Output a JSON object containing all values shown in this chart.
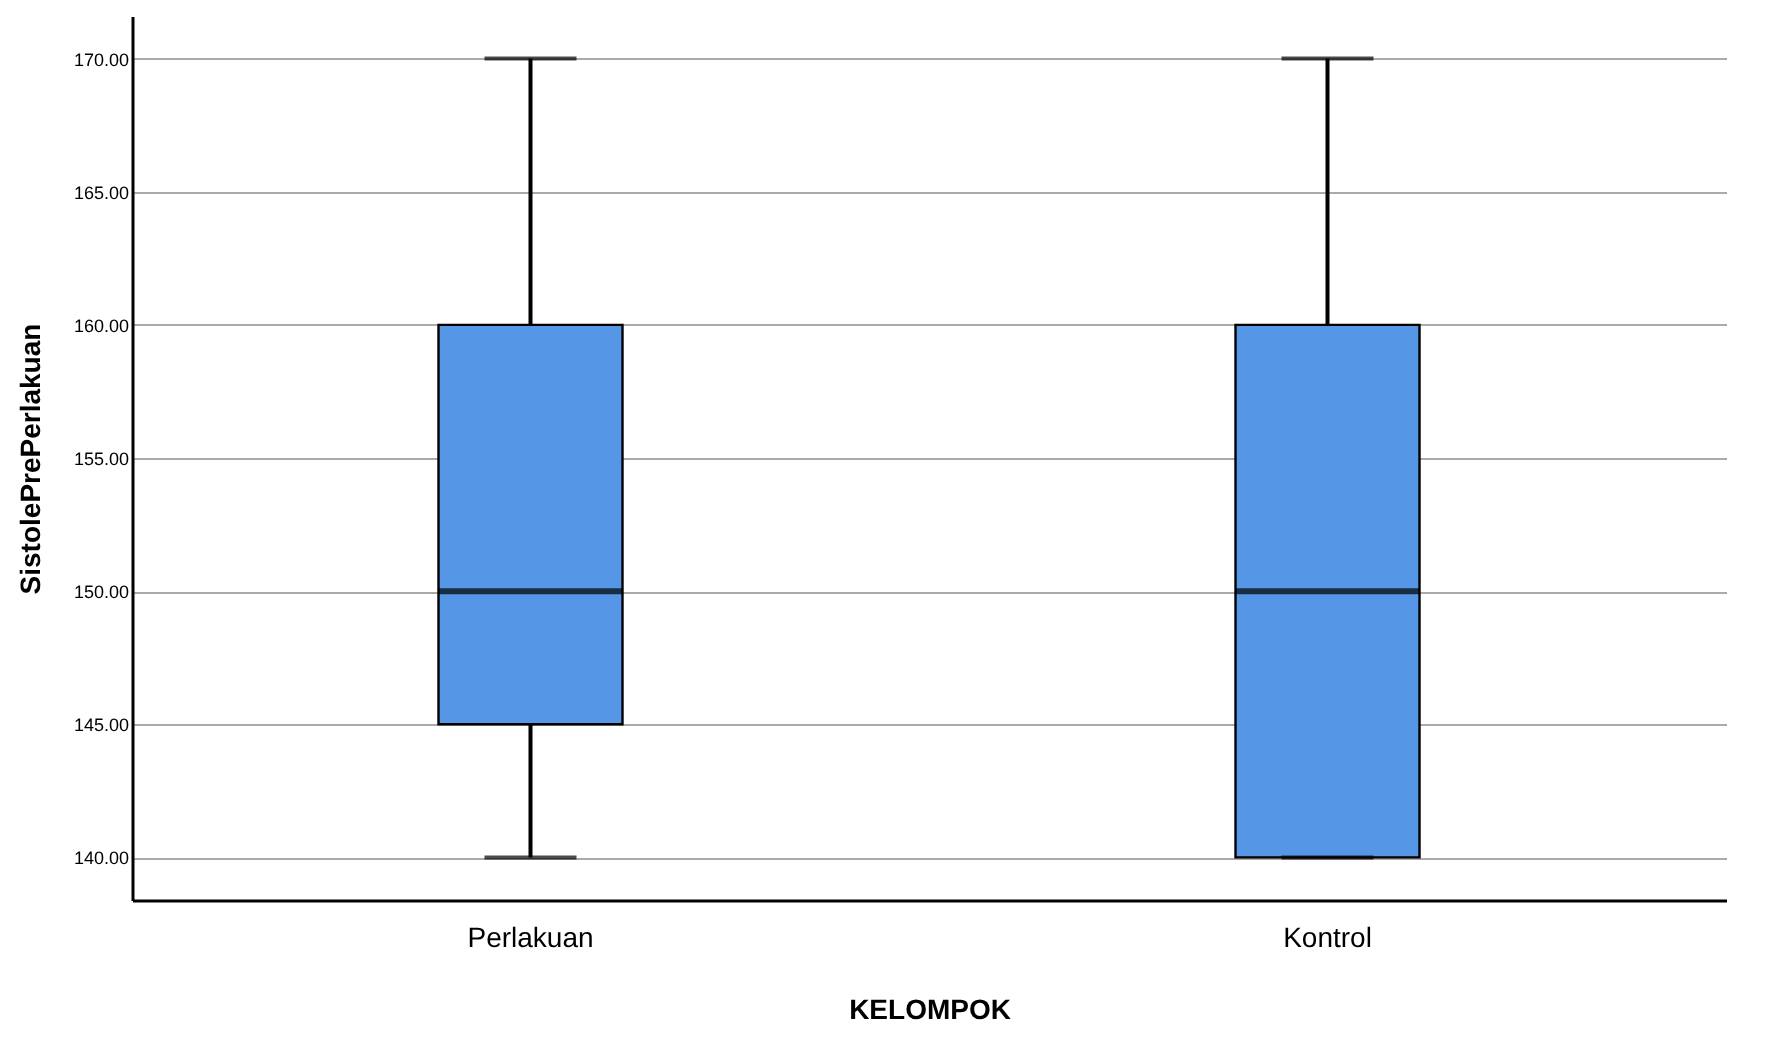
{
  "chart_data": {
    "type": "box",
    "xlabel": "KELOMPOK",
    "ylabel": "SistolePrePerlakuan",
    "categories": [
      "Perlakuan",
      "Kontrol"
    ],
    "boxes": [
      {
        "low": 140,
        "q1": 145,
        "median": 150,
        "q3": 160,
        "high": 170
      },
      {
        "low": 140,
        "q1": 140,
        "median": 150,
        "q3": 160,
        "high": 170
      }
    ],
    "color": "#5596e6",
    "ylim": [
      138.4,
      171.6
    ],
    "yticks": [
      {
        "value": 140,
        "label": "140.00"
      },
      {
        "value": 145,
        "label": "145.00"
      },
      {
        "value": 150,
        "label": "150.00"
      },
      {
        "value": 155,
        "label": "155.00"
      },
      {
        "value": 160,
        "label": "160.00"
      },
      {
        "value": 165,
        "label": "165.00"
      },
      {
        "value": 170,
        "label": "170.00"
      }
    ],
    "grid": "y"
  }
}
